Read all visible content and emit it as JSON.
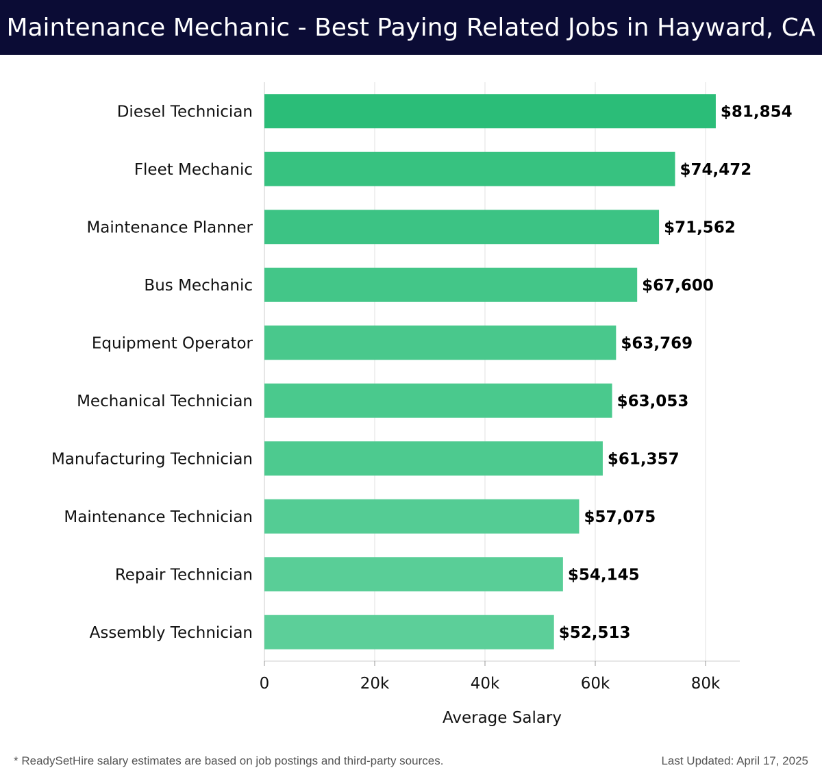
{
  "header": {
    "title": "Maintenance Mechanic - Best Paying Related Jobs in Hayward, CA"
  },
  "footer": {
    "note": "* ReadySetHire salary estimates are based on job postings and third-party sources.",
    "updated": "Last Updated: April 17, 2025"
  },
  "colors": {
    "header_bg": "#0b0c35",
    "bar_top": "#2bbd78",
    "bar_bottom": "#5ccf99"
  },
  "chart_data": {
    "type": "bar",
    "orientation": "horizontal",
    "categories": [
      "Diesel Technician",
      "Fleet Mechanic",
      "Maintenance Planner",
      "Bus Mechanic",
      "Equipment Operator",
      "Mechanical Technician",
      "Manufacturing Technician",
      "Maintenance Technician",
      "Repair Technician",
      "Assembly Technician"
    ],
    "values": [
      81854,
      74472,
      71562,
      67600,
      63769,
      63053,
      61357,
      57075,
      54145,
      52513
    ],
    "value_labels": [
      "$81,854",
      "$74,472",
      "$71,562",
      "$67,600",
      "$63,769",
      "$63,053",
      "$61,357",
      "$57,075",
      "$54,145",
      "$52,513"
    ],
    "xlabel": "Average Salary",
    "ylabel": "",
    "xlim": [
      0,
      86000
    ],
    "xticks": [
      0,
      20000,
      40000,
      60000,
      80000
    ],
    "xtick_labels": [
      "0",
      "20k",
      "40k",
      "60k",
      "80k"
    ],
    "grid": true
  }
}
